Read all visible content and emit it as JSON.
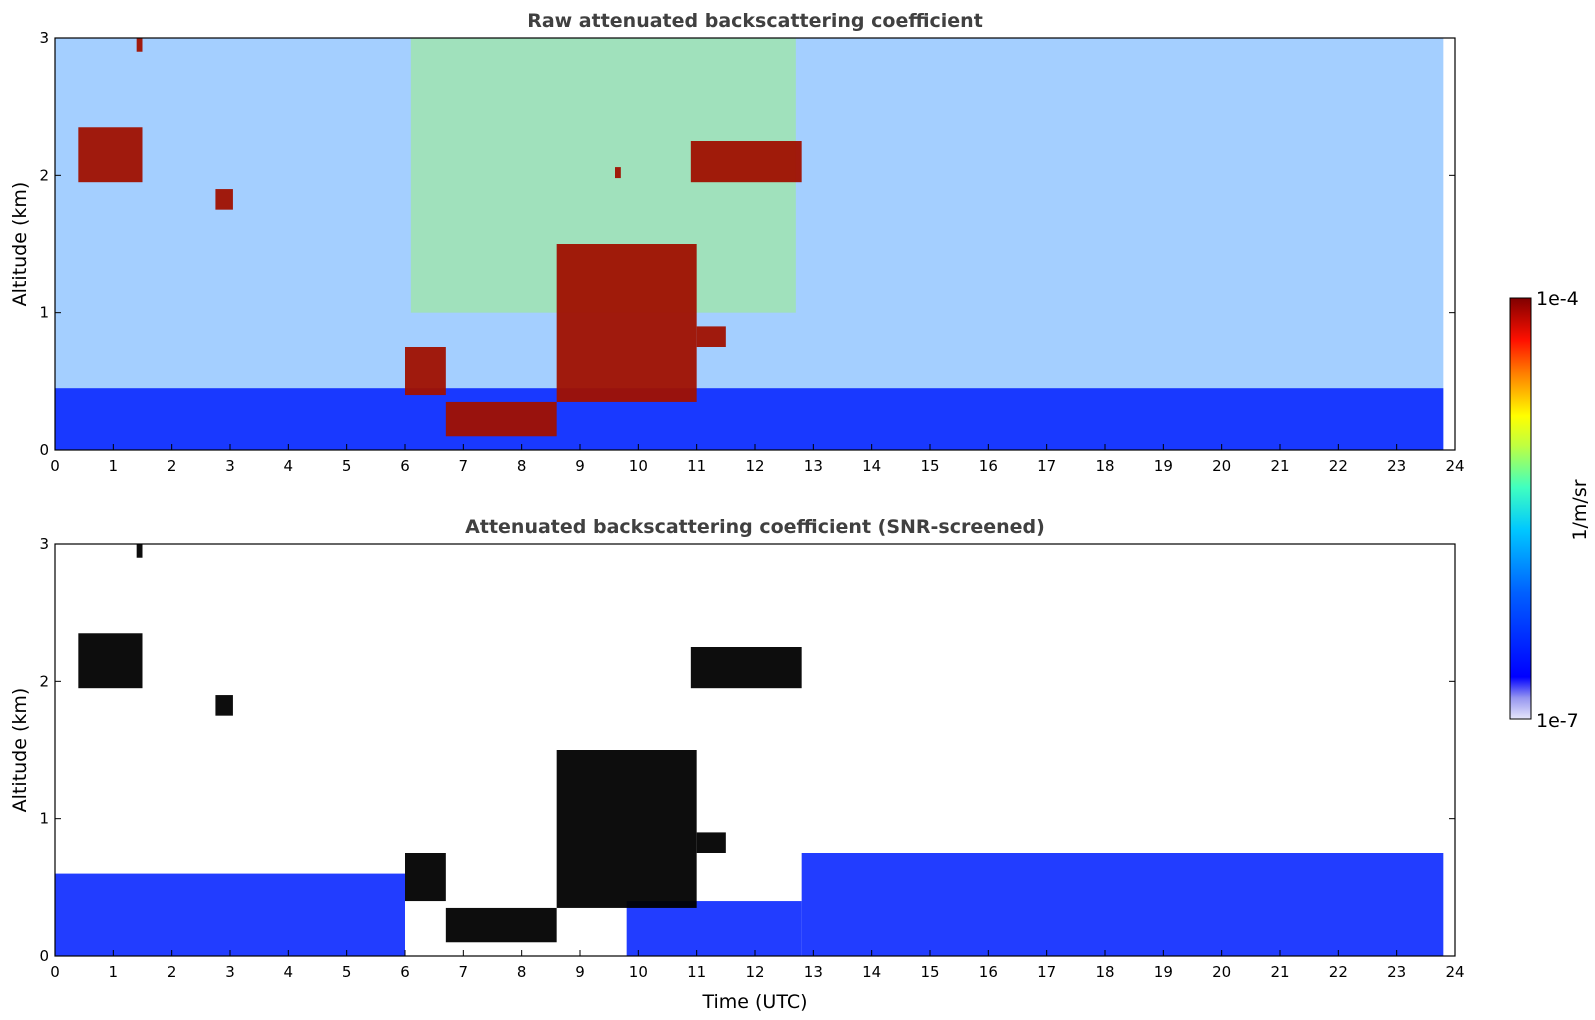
{
  "chart_data": [
    {
      "type": "heatmap",
      "title": "Raw attenuated backscattering coefficient",
      "xlabel": "",
      "ylabel": "Altitude (km)",
      "xlim": [
        0,
        24
      ],
      "ylim": [
        0,
        3
      ],
      "x_ticks": [
        "0",
        "1",
        "2",
        "3",
        "4",
        "5",
        "6",
        "7",
        "8",
        "9",
        "10",
        "11",
        "12",
        "13",
        "14",
        "15",
        "16",
        "17",
        "18",
        "19",
        "20",
        "21",
        "22",
        "23",
        "24"
      ],
      "y_ticks": [
        "0",
        "1",
        "2",
        "3"
      ],
      "features": [
        {
          "kind": "boundary_layer_aerosol",
          "x": [
            0,
            23.8
          ],
          "y_top": 0.45
        },
        {
          "kind": "elevated_noise_region",
          "x": [
            6.1,
            12.7
          ],
          "y": [
            1.0,
            3.0
          ]
        },
        {
          "kind": "cloud",
          "x": [
            0.4,
            1.5
          ],
          "y": [
            1.95,
            2.35
          ]
        },
        {
          "kind": "cloud",
          "x": [
            1.4,
            1.5
          ],
          "y": [
            2.9,
            3.0
          ]
        },
        {
          "kind": "cloud",
          "x": [
            2.75,
            3.05
          ],
          "y": [
            1.75,
            1.9
          ]
        },
        {
          "kind": "cloud",
          "x": [
            10.9,
            12.8
          ],
          "y": [
            1.95,
            2.25
          ]
        },
        {
          "kind": "cloud",
          "x": [
            6.0,
            6.7
          ],
          "y": [
            0.4,
            0.75
          ]
        },
        {
          "kind": "cloud",
          "x": [
            6.7,
            8.6
          ],
          "y": [
            0.1,
            0.35
          ]
        },
        {
          "kind": "cloud",
          "x": [
            8.6,
            11.0
          ],
          "y": [
            0.35,
            1.5
          ]
        },
        {
          "kind": "cloud",
          "x": [
            11.0,
            11.5
          ],
          "y": [
            0.75,
            0.9
          ]
        },
        {
          "kind": "cloud",
          "x": [
            9.6,
            9.7
          ],
          "y": [
            1.98,
            2.06
          ]
        }
      ]
    },
    {
      "type": "heatmap",
      "title": "Attenuated backscattering coefficient (SNR-screened)",
      "xlabel": "Time (UTC)",
      "ylabel": "Altitude (km)",
      "xlim": [
        0,
        24
      ],
      "ylim": [
        0,
        3
      ],
      "x_ticks": [
        "0",
        "1",
        "2",
        "3",
        "4",
        "5",
        "6",
        "7",
        "8",
        "9",
        "10",
        "11",
        "12",
        "13",
        "14",
        "15",
        "16",
        "17",
        "18",
        "19",
        "20",
        "21",
        "22",
        "23",
        "24"
      ],
      "y_ticks": [
        "0",
        "1",
        "2",
        "3"
      ],
      "features": [
        {
          "kind": "boundary_layer_aerosol",
          "x": [
            0,
            6.0
          ],
          "y_top": 0.6
        },
        {
          "kind": "boundary_layer_aerosol",
          "x": [
            9.8,
            12.8
          ],
          "y_top": 0.4
        },
        {
          "kind": "boundary_layer_aerosol",
          "x": [
            12.8,
            23.8
          ],
          "y_top": 0.75
        },
        {
          "kind": "cloud",
          "x": [
            0.4,
            1.5
          ],
          "y": [
            1.95,
            2.35
          ]
        },
        {
          "kind": "cloud",
          "x": [
            1.4,
            1.5
          ],
          "y": [
            2.9,
            3.0
          ]
        },
        {
          "kind": "cloud",
          "x": [
            2.75,
            3.05
          ],
          "y": [
            1.75,
            1.9
          ]
        },
        {
          "kind": "cloud",
          "x": [
            10.9,
            12.8
          ],
          "y": [
            1.95,
            2.25
          ]
        },
        {
          "kind": "cloud",
          "x": [
            6.0,
            6.7
          ],
          "y": [
            0.4,
            0.75
          ]
        },
        {
          "kind": "cloud",
          "x": [
            6.7,
            8.6
          ],
          "y": [
            0.1,
            0.35
          ]
        },
        {
          "kind": "cloud",
          "x": [
            8.6,
            11.0
          ],
          "y": [
            0.35,
            1.5
          ]
        },
        {
          "kind": "cloud",
          "x": [
            11.0,
            11.5
          ],
          "y": [
            0.75,
            0.9
          ]
        }
      ]
    }
  ],
  "colorbar": {
    "label": "1/m/sr",
    "max_label": "1e-4",
    "min_label": "1e-7",
    "scale": "log",
    "colormap": "jet",
    "colors": [
      "#e6e6fa",
      "#c8c8f5",
      "#9696f0",
      "#0000ff",
      "#0050ff",
      "#00a0ff",
      "#00e6ff",
      "#40ffc0",
      "#a0ff60",
      "#ffff00",
      "#ffa000",
      "#ff3000",
      "#c00000",
      "#800000"
    ]
  }
}
